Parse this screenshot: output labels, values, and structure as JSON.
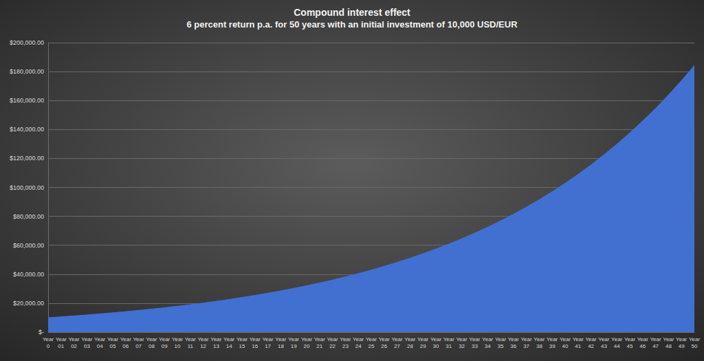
{
  "chart_data": {
    "type": "area",
    "title": "Compound interest effect",
    "subtitle": "6 percent return p.a. for 50 years with an initial investment of 10,000 USD/EUR",
    "categories": [
      "Year 0",
      "Year 01",
      "Year 02",
      "Year 03",
      "Year 04",
      "Year 05",
      "Year 06",
      "Year 07",
      "Year 08",
      "Year 09",
      "Year 10",
      "Year 11",
      "Year 12",
      "Year 13",
      "Year 14",
      "Year 15",
      "Year 16",
      "Year 17",
      "Year 18",
      "Year 19",
      "Year 20",
      "Year 21",
      "Year 22",
      "Year 23",
      "Year 24",
      "Year 25",
      "Year 26",
      "Year 27",
      "Year 28",
      "Year 29",
      "Year 30",
      "Year 31",
      "Year 32",
      "Year 33",
      "Year 34",
      "Year 35",
      "Year 36",
      "Year 37",
      "Year 38",
      "Year 39",
      "Year 40",
      "Year 41",
      "Year 42",
      "Year 43",
      "Year 44",
      "Year 45",
      "Year 46",
      "Year 47",
      "Year 48",
      "Year 49",
      "Year 50"
    ],
    "values": [
      10000,
      10600,
      11236,
      11910,
      12625,
      13382,
      14185,
      15036,
      15938,
      16895,
      17908,
      18983,
      20122,
      21329,
      22609,
      23966,
      25404,
      26928,
      28543,
      30256,
      32071,
      33996,
      36035,
      38197,
      40489,
      42919,
      45494,
      48223,
      51117,
      54184,
      57435,
      60881,
      64534,
      68406,
      72510,
      76861,
      81473,
      86361,
      91543,
      97035,
      102857,
      109029,
      115570,
      122505,
      129855,
      137646,
      145905,
      154659,
      163939,
      173775,
      184202
    ],
    "color": "#4170d0",
    "ylim": [
      0,
      200000
    ],
    "yticks": [
      {
        "value": 0,
        "label": "$-"
      },
      {
        "value": 20000,
        "label": "$20,000.00"
      },
      {
        "value": 40000,
        "label": "$40,000.00"
      },
      {
        "value": 60000,
        "label": "$60,000.00"
      },
      {
        "value": 80000,
        "label": "$80,000.00"
      },
      {
        "value": 100000,
        "label": "$100,000.00"
      },
      {
        "value": 120000,
        "label": "$120,000.00"
      },
      {
        "value": 140000,
        "label": "$140,000.00"
      },
      {
        "value": 160000,
        "label": "$160,000.00"
      },
      {
        "value": 180000,
        "label": "$180,000.00"
      },
      {
        "value": 200000,
        "label": "$200,000.00"
      }
    ],
    "grid": true
  }
}
